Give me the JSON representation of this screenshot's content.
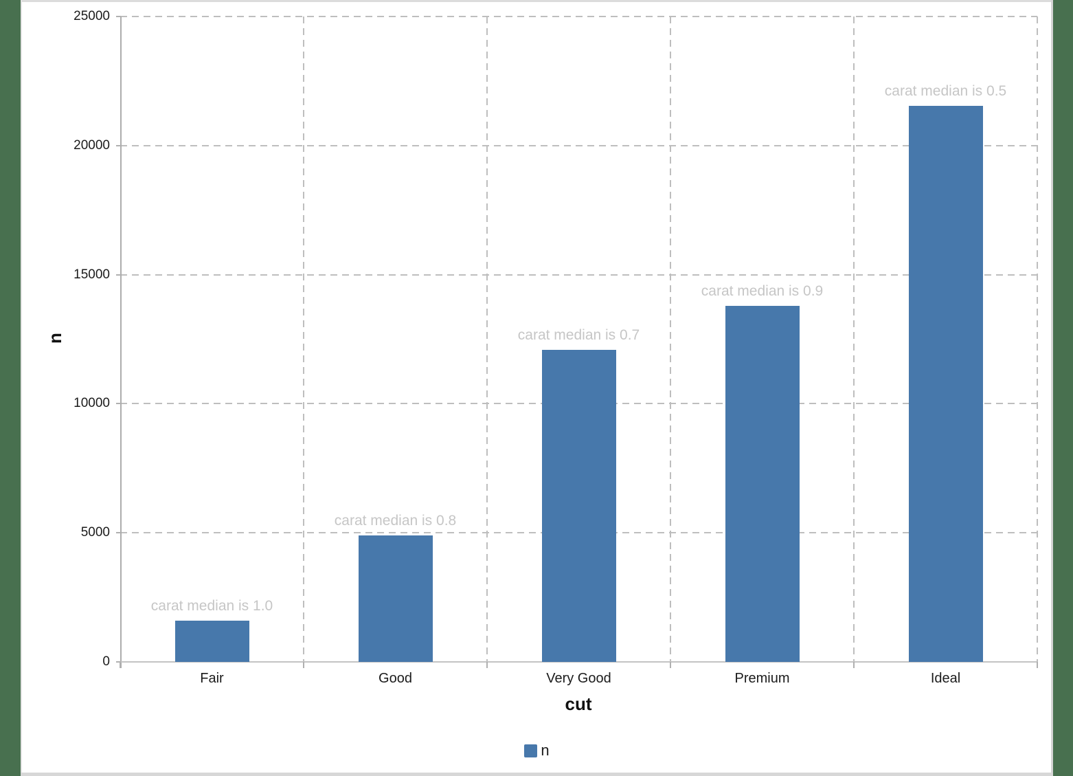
{
  "chart_data": {
    "type": "bar",
    "title": "",
    "xlabel": "cut",
    "ylabel": "n",
    "categories": [
      "Fair",
      "Good",
      "Very Good",
      "Premium",
      "Ideal"
    ],
    "series": [
      {
        "name": "n",
        "values": [
          1610,
          4906,
          12082,
          13791,
          21551
        ]
      }
    ],
    "bar_annotations": [
      "carat median is 1.0",
      "carat median is 0.8",
      "carat median is 0.7",
      "carat median is 0.9",
      "carat median is 0.5"
    ],
    "y_ticks": [
      0,
      5000,
      10000,
      15000,
      20000,
      25000
    ],
    "ylim": [
      0,
      25000
    ],
    "grid": "dashed",
    "legend": {
      "position": "bottom",
      "entries": [
        "n"
      ]
    },
    "colors": {
      "bar": "#4778AB",
      "annotation": "#C6C6C6",
      "gridline": "#BEBEBE",
      "axis_line": "#ACACAC",
      "tick_text": "#1B1B1B",
      "desktop_background": "#48704F",
      "chart_background": "#FFFFFF"
    }
  }
}
